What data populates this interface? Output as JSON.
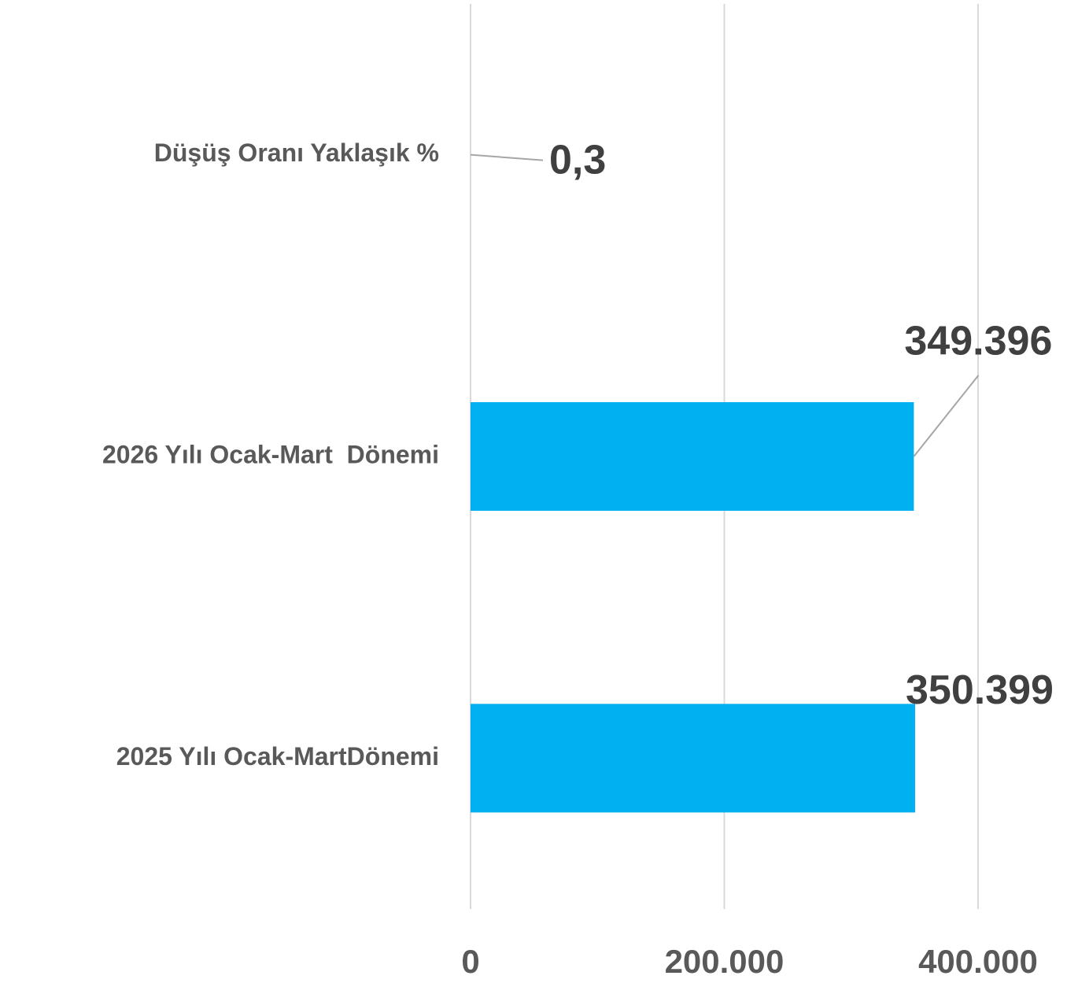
{
  "chart_data": {
    "type": "barh",
    "categories": [
      "Düşüş Oranı Yaklaşık %",
      "2026 Yılı Ocak-Mart  Dönemi",
      "2025 Yılı Ocak-MartDönemi"
    ],
    "values": [
      0.3,
      349396,
      350399
    ],
    "value_labels": [
      "0,3",
      "349.396",
      "350.399"
    ],
    "color": "#00b0f0",
    "xlim": [
      0,
      450000
    ],
    "xticks": [
      0,
      {
        "value": 200000,
        "label": "200.000"
      },
      {
        "value": 400000,
        "label": "400.000"
      }
    ],
    "grid": true
  }
}
